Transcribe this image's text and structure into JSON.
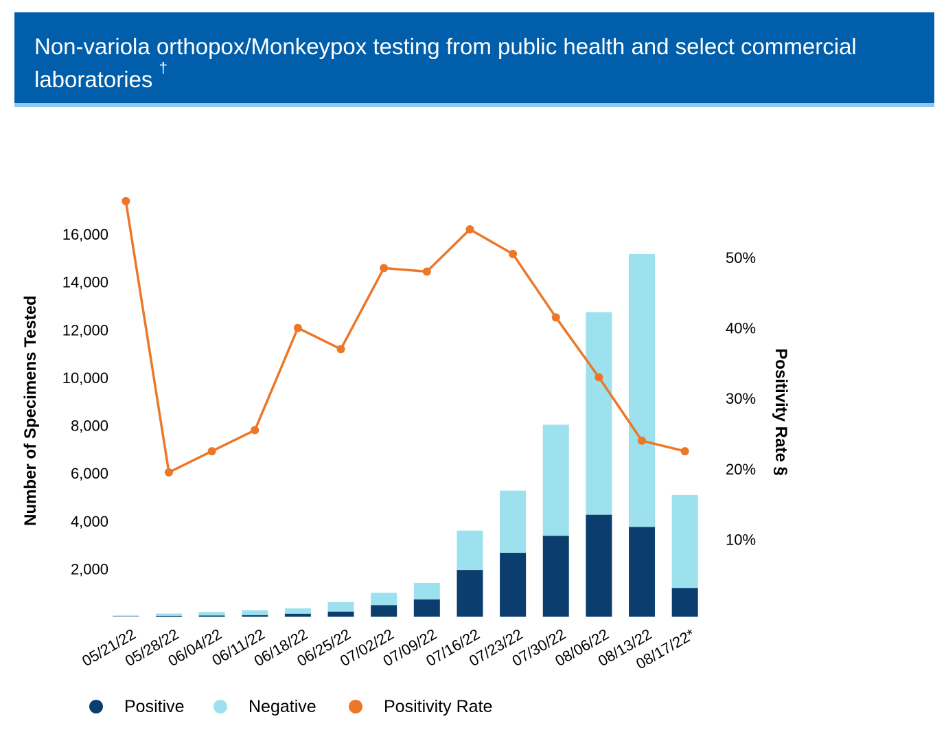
{
  "header": {
    "title": "Non-variola orthopox/Monkeypox testing from public health and select commercial laboratories",
    "title_mark": "†"
  },
  "colors": {
    "header_bg": "#005eaa",
    "header_rule": "#8ec8ec",
    "positive": "#0b3d6f",
    "negative": "#9de0ee",
    "positivity_rate": "#ec7728"
  },
  "chart_data": {
    "type": "bar",
    "stacked": true,
    "title": "Non-variola orthopox/Monkeypox testing from public health and select commercial laboratories †",
    "categories": [
      "05/21/22",
      "05/28/22",
      "06/04/22",
      "06/11/22",
      "06/18/22",
      "06/25/22",
      "07/02/22",
      "07/09/22",
      "07/16/22",
      "07/23/22",
      "07/30/22",
      "08/06/22",
      "08/13/22",
      "08/17/22*"
    ],
    "ylabel": "Number of Specimens Tested",
    "ylim": [
      0,
      17000
    ],
    "y_ticks": [
      2000,
      4000,
      6000,
      8000,
      10000,
      12000,
      14000,
      16000
    ],
    "y_tick_labels": [
      "2,000",
      "4,000",
      "6,000",
      "8,000",
      "10,000",
      "12,000",
      "14,000",
      "16,000"
    ],
    "y2label": "Positivity Rate §",
    "y2lim": [
      0,
      62
    ],
    "y2_ticks": [
      10,
      20,
      30,
      40,
      50
    ],
    "y2_tick_labels": [
      "10%",
      "20%",
      "30%",
      "40%",
      "50%"
    ],
    "series": [
      {
        "name": "Positive",
        "type": "bar",
        "axis": "left",
        "values": [
          10,
          30,
          45,
          60,
          120,
          210,
          480,
          720,
          1950,
          2670,
          3380,
          4260,
          3750,
          1200
        ]
      },
      {
        "name": "Negative",
        "type": "bar",
        "axis": "left",
        "values": [
          40,
          100,
          150,
          210,
          230,
          400,
          520,
          690,
          1650,
          2600,
          4650,
          8480,
          11420,
          3890
        ]
      },
      {
        "name": "Positivity Rate",
        "type": "line",
        "axis": "right",
        "values": [
          58,
          19.5,
          22.5,
          25.5,
          40,
          37,
          48.5,
          48,
          54,
          50.5,
          41.5,
          33,
          24,
          22.5
        ]
      }
    ],
    "legend": {
      "position": "bottom-left",
      "items": [
        "Positive",
        "Negative",
        "Positivity Rate"
      ]
    },
    "grid": false
  }
}
